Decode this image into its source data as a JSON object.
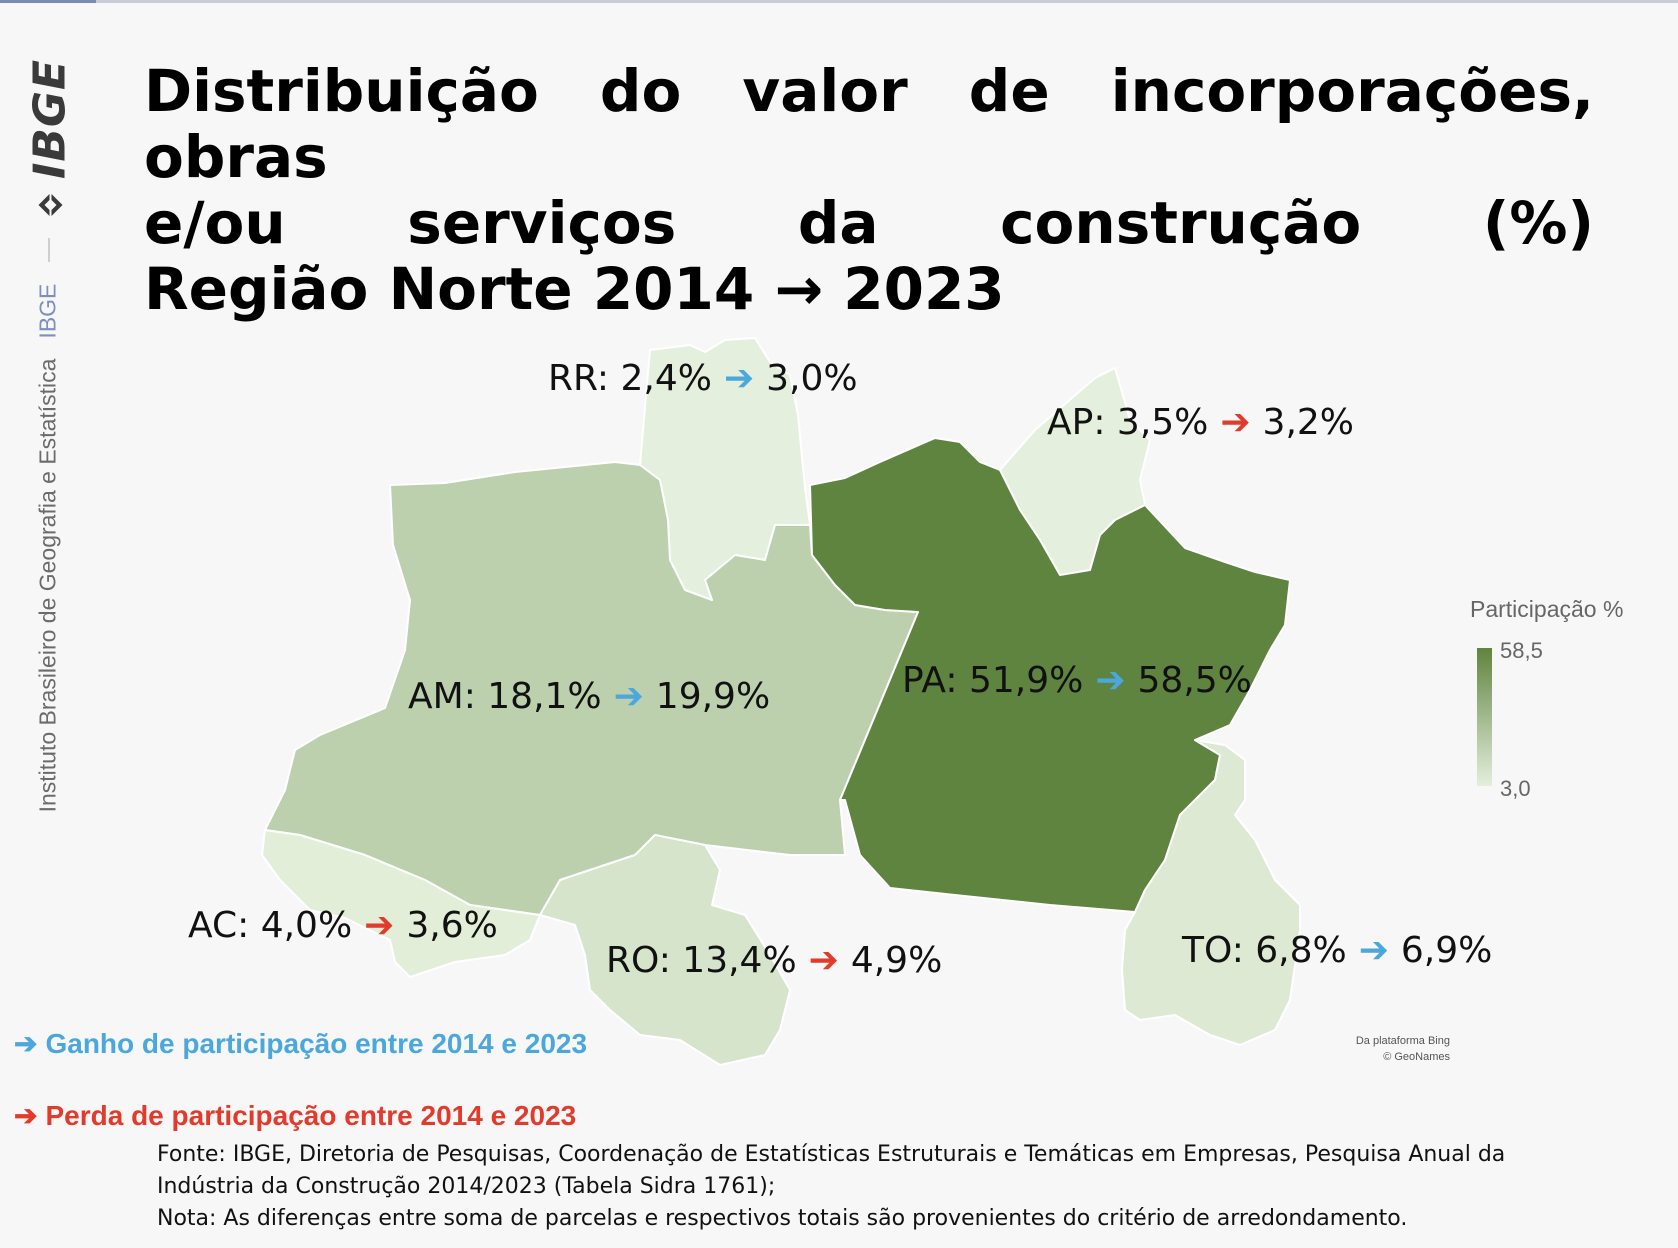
{
  "sidebar": {
    "logo_text": "IBGE",
    "institute_name": "Instituto Brasileiro de Geografia e Estatística",
    "short_name": "IBGE"
  },
  "title": {
    "line1": "Distribuição do valor de incorporações, obras",
    "line2": "e/ou serviços da construção (%)",
    "line3": "Região Norte 2014 → 2023"
  },
  "states": [
    {
      "code": "RR",
      "prefix": "RR: 2,4%",
      "suffix": "3,0%",
      "trend": "gain",
      "value_2014": 2.4,
      "value_2023": 3.0
    },
    {
      "code": "AP",
      "prefix": "AP: 3,5%",
      "suffix": "3,2%",
      "trend": "loss",
      "value_2014": 3.5,
      "value_2023": 3.2
    },
    {
      "code": "AM",
      "prefix": "AM: 18,1%",
      "suffix": "19,9%",
      "trend": "gain",
      "value_2014": 18.1,
      "value_2023": 19.9
    },
    {
      "code": "PA",
      "prefix": "PA: 51,9%",
      "suffix": "58,5%",
      "trend": "gain",
      "value_2014": 51.9,
      "value_2023": 58.5
    },
    {
      "code": "AC",
      "prefix": "AC: 4,0%",
      "suffix": "3,6%",
      "trend": "loss",
      "value_2014": 4.0,
      "value_2023": 3.6
    },
    {
      "code": "RO",
      "prefix": "RO: 13,4%",
      "suffix": "4,9%",
      "trend": "loss",
      "value_2014": 13.4,
      "value_2023": 4.9
    },
    {
      "code": "TO",
      "prefix": "TO: 6,8%",
      "suffix": "6,9%",
      "trend": "gain",
      "value_2014": 6.8,
      "value_2023": 6.9
    }
  ],
  "arrow_glyph": "➔",
  "colors": {
    "gain": "#4ba7dc",
    "loss": "#e23a2b",
    "scale_max": "#5f843f",
    "scale_min": "#e4efdb",
    "PA": "#5f843f",
    "AM": "#bcd0ae",
    "RO": "#d6e4cb",
    "AC": "#e3eed9",
    "TO": "#dde9d3",
    "RR": "#e5efdd",
    "AP": "#e5efdd"
  },
  "scale_legend": {
    "title": "Participação %",
    "max": "58,5",
    "min": "3,0"
  },
  "attribution": {
    "line1": "Da plataforma Bing",
    "line2": "© GeoNames"
  },
  "trend_legend": {
    "gain": "Ganho de participação entre 2014 e 2023",
    "loss": "Perda de participação entre 2014 e 2023"
  },
  "footer": {
    "source_line1": "Fonte: IBGE, Diretoria de Pesquisas, Coordenação de Estatísticas Estruturais e Temáticas em Empresas, Pesquisa Anual da",
    "source_line2": "Indústria da Construção 2014/2023 (Tabela Sidra 1761);",
    "note": "Nota: As diferenças entre soma de parcelas e respectivos totais são provenientes do critério de arredondamento."
  }
}
